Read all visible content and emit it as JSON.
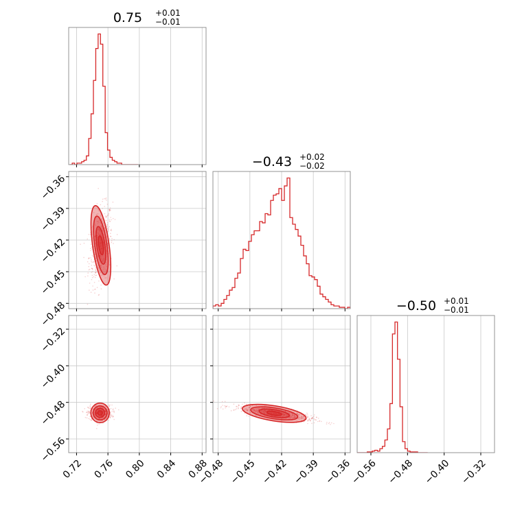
{
  "chart_data": {
    "type": "corner",
    "accent_color": "#d62728",
    "grid": true,
    "panels": [
      {
        "id": "p00",
        "kind": "hist",
        "title": {
          "median": "0.75",
          "plus": "+0.01",
          "minus": "−0.01"
        },
        "xlim": [
          0.71,
          0.885
        ],
        "x_ticks": [
          0.72,
          0.76,
          0.8,
          0.84,
          0.88
        ],
        "bin_width": 0.003,
        "hist_x": [
          0.713,
          0.716,
          0.719,
          0.722,
          0.725,
          0.728,
          0.731,
          0.734,
          0.737,
          0.74,
          0.743,
          0.746,
          0.749,
          0.752,
          0.755,
          0.758,
          0.761,
          0.764,
          0.767,
          0.77,
          0.773,
          0.776,
          0.779,
          0.782,
          0.785,
          0.788,
          0.791,
          0.794,
          0.797
        ],
        "hist_y": [
          0,
          1,
          0,
          1,
          1,
          2,
          3,
          6,
          18,
          35,
          58,
          80,
          90,
          83,
          54,
          22,
          10,
          5,
          3,
          2,
          1,
          1,
          0,
          0,
          0,
          0,
          0,
          0,
          0
        ]
      },
      {
        "id": "p10",
        "kind": "scatter",
        "xlim": [
          0.71,
          0.885
        ],
        "ylim": [
          -0.485,
          -0.355
        ],
        "x_ticks": [
          0.72,
          0.76,
          0.8,
          0.84,
          0.88
        ],
        "y_ticks": [
          -0.36,
          -0.39,
          -0.42,
          -0.45,
          -0.48
        ],
        "y_tick_labels": [
          "−0.36",
          "−0.39",
          "−0.42",
          "−0.45",
          "−0.48"
        ],
        "center": [
          0.751,
          -0.425
        ],
        "spread": [
          0.0075,
          0.018
        ],
        "corr": 0.3,
        "n_points": 520,
        "contours": [
          {
            "rx": 0.0105,
            "ry": 0.038,
            "angle": -8
          },
          {
            "rx": 0.0078,
            "ry": 0.028,
            "angle": -8
          },
          {
            "rx": 0.0052,
            "ry": 0.018,
            "angle": -8
          },
          {
            "rx": 0.0028,
            "ry": 0.009,
            "angle": -8
          }
        ]
      },
      {
        "id": "p11",
        "kind": "hist",
        "title": {
          "median": "−0.43",
          "plus": "+0.02",
          "minus": "−0.02"
        },
        "xlim": [
          -0.485,
          -0.355
        ],
        "x_ticks": [
          -0.48,
          -0.45,
          -0.42,
          -0.39,
          -0.36
        ],
        "bin_width": 0.0026,
        "hist_x": [
          -0.4837,
          -0.4811,
          -0.4785,
          -0.4759,
          -0.4733,
          -0.4707,
          -0.4681,
          -0.4655,
          -0.4629,
          -0.4603,
          -0.4577,
          -0.4551,
          -0.4525,
          -0.4499,
          -0.4473,
          -0.4447,
          -0.4421,
          -0.4395,
          -0.4369,
          -0.4343,
          -0.4317,
          -0.4291,
          -0.4265,
          -0.4239,
          -0.4213,
          -0.4187,
          -0.4161,
          -0.4135,
          -0.4109,
          -0.4083,
          -0.4057,
          -0.4031,
          -0.4005,
          -0.3979,
          -0.3953,
          -0.3927,
          -0.3901,
          -0.3875,
          -0.3849,
          -0.3823,
          -0.3797,
          -0.3771,
          -0.3745,
          -0.3719,
          -0.3693,
          -0.3667,
          -0.3641,
          -0.3615,
          -0.3589,
          -0.3563
        ],
        "hist_y": [
          2,
          3,
          2,
          4,
          7,
          10,
          14,
          16,
          23,
          27,
          38,
          45,
          44,
          51,
          56,
          59,
          59,
          66,
          65,
          72,
          71,
          82,
          86,
          87,
          91,
          82,
          93,
          99,
          69,
          64,
          60,
          55,
          48,
          40,
          34,
          25,
          24,
          22,
          17,
          11,
          9,
          7,
          5,
          3,
          2,
          2,
          1,
          1,
          0,
          1
        ]
      },
      {
        "id": "p20",
        "kind": "scatter",
        "xlim": [
          0.71,
          0.885
        ],
        "ylim": [
          -0.59,
          -0.29
        ],
        "x_ticks": [
          0.72,
          0.76,
          0.8,
          0.84,
          0.88
        ],
        "x_tick_labels": [
          "0.72",
          "0.76",
          "0.80",
          "0.84",
          "0.88"
        ],
        "y_ticks": [
          -0.32,
          -0.4,
          -0.48,
          -0.56
        ],
        "y_tick_labels": [
          "−0.32",
          "−0.40",
          "−0.48",
          "−0.56"
        ],
        "center": [
          0.75,
          -0.503
        ],
        "spread": [
          0.0075,
          0.0085
        ],
        "corr": 0.0,
        "n_points": 520,
        "contours": [
          {
            "rx": 0.0118,
            "ry": 0.0215,
            "angle": 0
          },
          {
            "rx": 0.0088,
            "ry": 0.0155,
            "angle": 0
          },
          {
            "rx": 0.0058,
            "ry": 0.01,
            "angle": 0
          },
          {
            "rx": 0.003,
            "ry": 0.005,
            "angle": 0
          }
        ]
      },
      {
        "id": "p21",
        "kind": "scatter",
        "xlim": [
          -0.485,
          -0.355
        ],
        "ylim": [
          -0.59,
          -0.29
        ],
        "x_ticks": [
          -0.48,
          -0.45,
          -0.42,
          -0.39,
          -0.36
        ],
        "x_tick_labels": [
          "−0.48",
          "−0.45",
          "−0.42",
          "−0.39",
          "−0.36"
        ],
        "y_ticks": [
          -0.32,
          -0.4,
          -0.48,
          -0.56
        ],
        "center": [
          -0.427,
          -0.504
        ],
        "spread": [
          0.019,
          0.0085
        ],
        "corr": -0.8,
        "n_points": 620,
        "contours": [
          {
            "rx": 0.0305,
            "ry": 0.0165,
            "angle": 9
          },
          {
            "rx": 0.0225,
            "ry": 0.012,
            "angle": 9
          },
          {
            "rx": 0.0145,
            "ry": 0.008,
            "angle": 9
          },
          {
            "rx": 0.007,
            "ry": 0.004,
            "angle": 9
          }
        ]
      },
      {
        "id": "p22",
        "kind": "hist",
        "title": {
          "median": "−0.50",
          "plus": "+0.01",
          "minus": "−0.01"
        },
        "xlim": [
          -0.59,
          -0.29
        ],
        "x_ticks": [
          -0.56,
          -0.48,
          -0.4,
          -0.32
        ],
        "x_tick_labels": [
          "−0.56",
          "−0.48",
          "−0.40",
          "−0.32"
        ],
        "bin_width": 0.0055,
        "hist_x": [
          -0.5872,
          -0.5817,
          -0.5762,
          -0.5707,
          -0.5652,
          -0.5597,
          -0.5542,
          -0.5487,
          -0.5432,
          -0.5377,
          -0.5322,
          -0.5267,
          -0.5212,
          -0.5157,
          -0.5102,
          -0.5047,
          -0.4992,
          -0.4937,
          -0.4882,
          -0.4827,
          -0.4772,
          -0.4717,
          -0.4662,
          -0.4607,
          -0.4552,
          -0.4497,
          -0.4442,
          -0.4387
        ],
        "hist_y": [
          0,
          0,
          0,
          0,
          1,
          1,
          2,
          3,
          2,
          5,
          8,
          16,
          30,
          62,
          150,
          165,
          118,
          58,
          14,
          5,
          2,
          1,
          1,
          1,
          0,
          0,
          0,
          0
        ]
      }
    ]
  }
}
